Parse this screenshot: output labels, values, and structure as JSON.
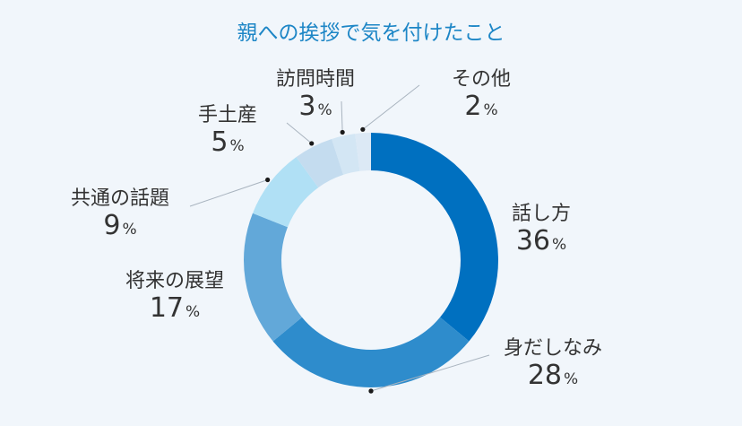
{
  "chart_data": {
    "type": "pie",
    "title": "親への挨拶で気を付けたこと",
    "unit": "%",
    "categories": [
      "話し方",
      "身だしなみ",
      "将来の展望",
      "共通の話題",
      "手土産",
      "訪問時間",
      "その他"
    ],
    "values": [
      36,
      28,
      17,
      9,
      5,
      3,
      2
    ],
    "colors": [
      "#0070c0",
      "#2e8ccc",
      "#62a8d9",
      "#b0e0f5",
      "#c4dcef",
      "#d3e6f4",
      "#dce9f5"
    ]
  }
}
